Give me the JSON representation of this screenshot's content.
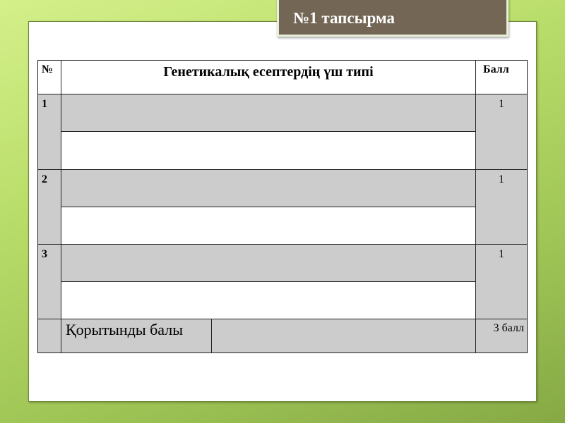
{
  "title": "№1 тапсырма",
  "table": {
    "headers": {
      "num": "№",
      "type": "Генетикалық есептердің үш типі",
      "score": "Балл"
    },
    "rows": [
      {
        "num": "1",
        "score": "1"
      },
      {
        "num": "2",
        "score": "1"
      },
      {
        "num": "3",
        "score": "1"
      }
    ],
    "total": {
      "label": "Қорытынды балы",
      "score": "3 балл"
    }
  },
  "colors": {
    "title_bg": "#736654",
    "row_gray": "#cccccc"
  }
}
